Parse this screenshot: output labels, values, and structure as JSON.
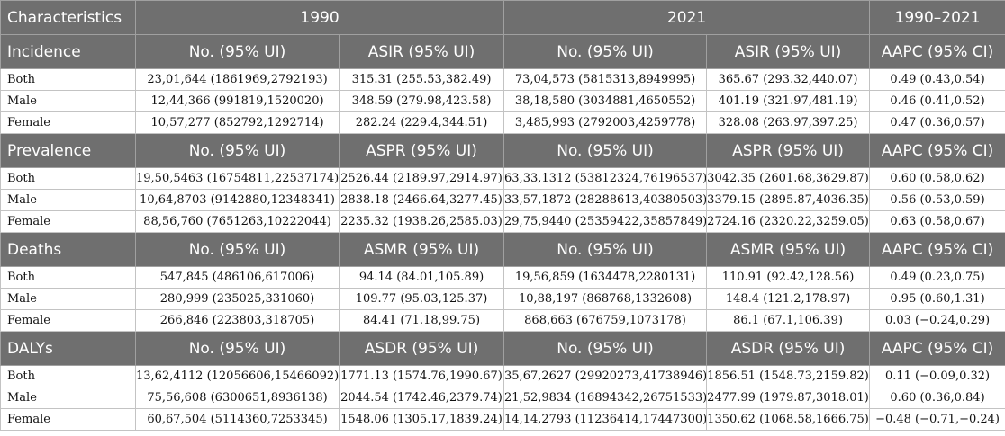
{
  "header": {
    "characteristics": "Characteristics",
    "year1": "1990",
    "year2": "2021",
    "period": "1990–2021"
  },
  "sections": [
    {
      "name": "Incidence",
      "cols": [
        "No. (95% UI)",
        "ASIR (95% UI)",
        "No. (95% UI)",
        "ASIR (95% UI)",
        "AAPC (95% CI)"
      ],
      "rows": [
        {
          "label": "Both",
          "values": [
            "23,01,644 (1861969,2792193)",
            "315.31 (255.53,382.49)",
            "73,04,573 (5815313,8949995)",
            "365.67 (293.32,440.07)",
            "0.49 (0.43,0.54)"
          ]
        },
        {
          "label": "Male",
          "values": [
            "12,44,366 (991819,1520020)",
            "348.59 (279.98,423.58)",
            "38,18,580 (3034881,4650552)",
            "401.19 (321.97,481.19)",
            "0.46 (0.41,0.52)"
          ]
        },
        {
          "label": "Female",
          "values": [
            "10,57,277 (852792,1292714)",
            "282.24 (229.4,344.51)",
            "3,485,993 (2792003,4259778)",
            "328.08 (263.97,397.25)",
            "0.47 (0.36,0.57)"
          ]
        }
      ]
    },
    {
      "name": "Prevalence",
      "cols": [
        "No. (95% UI)",
        "ASPR (95% UI)",
        "No. (95% UI)",
        "ASPR (95% UI)",
        "AAPC (95% CI)"
      ],
      "rows": [
        {
          "label": "Both",
          "values": [
            "19,50,5463 (16754811,22537174)",
            "2526.44 (2189.97,2914.97)",
            "63,33,1312 (53812324,76196537)",
            "3042.35 (2601.68,3629.87)",
            "0.60 (0.58,0.62)"
          ]
        },
        {
          "label": "Male",
          "values": [
            "10,64,8703 (9142880,12348341)",
            "2838.18 (2466.64,3277.45)",
            "33,57,1872 (28288613,40380503)",
            "3379.15 (2895.87,4036.35)",
            "0.56 (0.53,0.59)"
          ]
        },
        {
          "label": "Female",
          "values": [
            "88,56,760 (7651263,10222044)",
            "2235.32 (1938.26,2585.03)",
            "29,75,9440 (25359422,35857849)",
            "2724.16 (2320.22,3259.05)",
            "0.63 (0.58,0.67)"
          ]
        }
      ]
    },
    {
      "name": "Deaths",
      "cols": [
        "No. (95% UI)",
        "ASMR (95% UI)",
        "No. (95% UI)",
        "ASMR (95% UI)",
        "AAPC (95% CI)"
      ],
      "rows": [
        {
          "label": "Both",
          "values": [
            "547,845 (486106,617006)",
            "94.14 (84.01,105.89)",
            "19,56,859 (1634478,2280131)",
            "110.91 (92.42,128.56)",
            "0.49 (0.23,0.75)"
          ]
        },
        {
          "label": "Male",
          "values": [
            "280,999 (235025,331060)",
            "109.77 (95.03,125.37)",
            "10,88,197 (868768,1332608)",
            "148.4 (121.2,178.97)",
            "0.95 (0.60,1.31)"
          ]
        },
        {
          "label": "Female",
          "values": [
            "266,846 (223803,318705)",
            "84.41 (71.18,99.75)",
            "868,663 (676759,1073178)",
            "86.1 (67.1,106.39)",
            "0.03 (−0.24,0.29)"
          ]
        }
      ]
    },
    {
      "name": "DALYs",
      "cols": [
        "No. (95% UI)",
        "ASDR (95% UI)",
        "No. (95% UI)",
        "ASDR (95% UI)",
        "AAPC (95% CI)"
      ],
      "rows": [
        {
          "label": "Both",
          "values": [
            "13,62,4112 (12056606,15466092)",
            "1771.13 (1574.76,1990.67)",
            "35,67,2627 (29920273,41738946)",
            "1856.51 (1548.73,2159.82)",
            "0.11 (−0.09,0.32)"
          ]
        },
        {
          "label": "Male",
          "values": [
            "75,56,608 (6300651,8936138)",
            "2044.54 (1742.46,2379.74)",
            "21,52,9834 (16894342,26751533)",
            "2477.99 (1979.87,3018.01)",
            "0.60 (0.36,0.84)"
          ]
        },
        {
          "label": "Female",
          "values": [
            "60,67,504 (5114360,7253345)",
            "1548.06 (1305.17,1839.24)",
            "14,14,2793 (11236414,17447300)",
            "1350.62 (1068.58,1666.75)",
            "−0.48 (−0.71,−0.24)"
          ]
        }
      ]
    }
  ]
}
